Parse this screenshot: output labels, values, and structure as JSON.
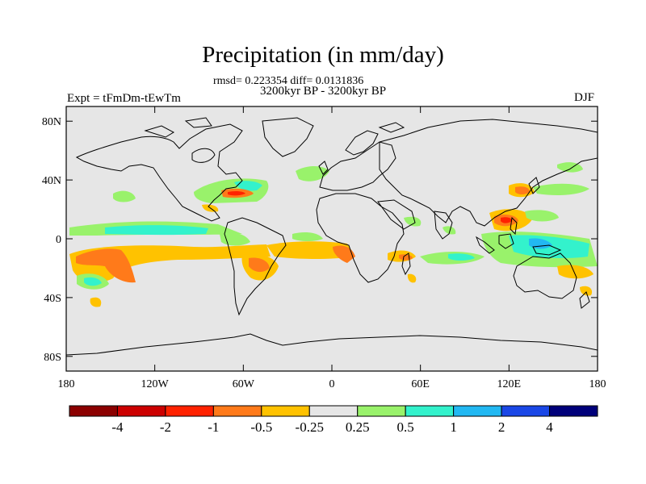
{
  "title": "Precipitation (in mm/day)",
  "stats": "rmsd= 0.223354 diff= 0.0131836",
  "period": "3200kyr BP - 3200kyr BP",
  "experiment": "Expt = tFmDm-tEwTm",
  "season": "DJF",
  "axes": {
    "lat_labels": [
      "80N",
      "40N",
      "0",
      "40S",
      "80S"
    ],
    "lon_labels": [
      "180",
      "120W",
      "60W",
      "0",
      "60E",
      "120E",
      "180"
    ]
  },
  "colorbar": {
    "colors": [
      "#8b0000",
      "#cc0000",
      "#ff2200",
      "#ff7a1a",
      "#ffc200",
      "#e6e6e6",
      "#99f26b",
      "#33f2cc",
      "#22b8f2",
      "#1a47e6",
      "#00007a"
    ],
    "labels": [
      "-4",
      "-2",
      "-1",
      "-0.5",
      "-0.25",
      "0.25",
      "0.5",
      "1",
      "2",
      "4"
    ]
  },
  "map": {
    "background": "#e6e6e6",
    "region": "global, 180W-180E, 90S-90N"
  }
}
